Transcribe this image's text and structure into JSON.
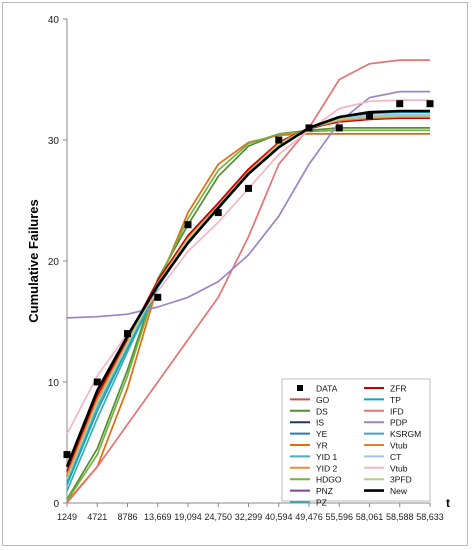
{
  "chart_data": {
    "type": "line",
    "title": "",
    "ylabel": "Cumulative Failures",
    "xlabel": "t",
    "x": [
      "1249",
      "4721",
      "8786",
      "13,669",
      "19,094",
      "24,750",
      "32,299",
      "40,594",
      "49,476",
      "55,596",
      "58,061",
      "58,588",
      "58,633"
    ],
    "ylim": [
      0,
      40
    ],
    "yticks": [
      0,
      10,
      20,
      30,
      40
    ],
    "grid": false,
    "legend_position": "bottom-right",
    "data": {
      "name": "DATA",
      "values": [
        4,
        10,
        14,
        17,
        23,
        24,
        26,
        30,
        31,
        31,
        32,
        33,
        33
      ]
    },
    "series": [
      {
        "name": "GO",
        "color": "#c0504d",
        "values": [
          2.5,
          8.8,
          13.5,
          18.3,
          22.0,
          24.7,
          27.5,
          29.8,
          31.0,
          31.6,
          31.8,
          31.9,
          31.9
        ]
      },
      {
        "name": "DS",
        "color": "#4f8f2f",
        "values": [
          0.3,
          4.5,
          11.0,
          18.5,
          23.0,
          27.0,
          29.5,
          30.5,
          30.8,
          31.0,
          31.0,
          31.0,
          31.0
        ]
      },
      {
        "name": "IS",
        "color": "#1f3864",
        "values": [
          2.2,
          8.5,
          13.3,
          18.2,
          21.8,
          24.6,
          27.3,
          29.6,
          30.9,
          31.6,
          31.8,
          31.9,
          31.9
        ]
      },
      {
        "name": "YE",
        "color": "#2e75b6",
        "values": [
          1.8,
          8.0,
          13.0,
          18.0,
          21.7,
          24.4,
          27.2,
          29.5,
          31.0,
          31.8,
          32.0,
          32.1,
          32.1
        ]
      },
      {
        "name": "YR",
        "color": "#e26b0a",
        "values": [
          0.1,
          3.0,
          9.5,
          18.0,
          24.0,
          28.0,
          29.8,
          30.4,
          30.5,
          30.5,
          30.5,
          30.5,
          30.5
        ]
      },
      {
        "name": "YID 1",
        "color": "#4bacc6",
        "values": [
          2.0,
          8.3,
          13.2,
          18.1,
          21.8,
          24.5,
          27.3,
          29.6,
          31.0,
          31.7,
          31.9,
          32.0,
          32.0
        ]
      },
      {
        "name": "YID 2",
        "color": "#f28b30",
        "values": [
          2.4,
          8.7,
          13.4,
          18.2,
          21.9,
          24.6,
          27.4,
          29.7,
          31.0,
          31.6,
          31.8,
          31.9,
          31.9
        ]
      },
      {
        "name": "HDGO",
        "color": "#76b041",
        "values": [
          0.2,
          4.0,
          10.5,
          18.3,
          23.5,
          27.5,
          29.7,
          30.5,
          30.7,
          30.8,
          30.8,
          30.8,
          30.8
        ]
      },
      {
        "name": "PNZ",
        "color": "#7f3f98",
        "values": [
          2.2,
          8.5,
          13.3,
          18.2,
          21.9,
          24.6,
          27.4,
          29.7,
          31.0,
          31.6,
          31.8,
          31.9,
          31.9
        ]
      },
      {
        "name": "PZ",
        "color": "#31b0b0",
        "values": [
          1.0,
          7.0,
          12.5,
          17.8,
          21.6,
          24.3,
          27.2,
          29.6,
          31.0,
          31.9,
          32.2,
          32.3,
          32.3
        ]
      },
      {
        "name": "ZFR",
        "color": "#c00000",
        "values": [
          2.6,
          8.9,
          13.6,
          18.4,
          22.1,
          24.8,
          27.6,
          29.8,
          31.0,
          31.5,
          31.7,
          31.8,
          31.8
        ]
      },
      {
        "name": "TP",
        "color": "#17a2b8",
        "values": [
          1.5,
          7.6,
          12.8,
          17.9,
          21.7,
          24.4,
          27.2,
          29.5,
          31.0,
          31.9,
          32.2,
          32.3,
          32.3
        ]
      },
      {
        "name": "IFD",
        "color": "#e57373",
        "values": [
          0.0,
          3.0,
          6.5,
          10.0,
          13.5,
          17.0,
          22.0,
          28.0,
          31.0,
          35.0,
          36.3,
          36.6,
          36.6
        ]
      },
      {
        "name": "PDP",
        "color": "#9b84c6",
        "values": [
          15.3,
          15.4,
          15.6,
          16.2,
          17.0,
          18.3,
          20.5,
          23.7,
          28.0,
          31.5,
          33.5,
          34.0,
          34.0
        ]
      },
      {
        "name": "KSRGM",
        "color": "#41a1c8",
        "values": [
          1.8,
          8.0,
          13.0,
          18.0,
          21.7,
          24.4,
          27.2,
          29.5,
          31.0,
          31.8,
          32.0,
          32.1,
          32.1
        ]
      },
      {
        "name": "Vtub",
        "color": "#ed7d31",
        "values": [
          2.3,
          8.6,
          13.3,
          18.2,
          21.9,
          24.6,
          27.4,
          29.7,
          31.0,
          31.6,
          31.8,
          31.9,
          31.9
        ]
      },
      {
        "name": "CT",
        "color": "#9dc3e6",
        "values": [
          2.0,
          8.2,
          13.1,
          18.0,
          21.8,
          24.5,
          27.3,
          29.6,
          31.0,
          31.8,
          32.0,
          32.1,
          32.1
        ]
      },
      {
        "name": "Vtub",
        "color": "#f4b6c2",
        "values": [
          5.7,
          10.5,
          14.0,
          17.5,
          20.8,
          23.2,
          26.0,
          28.8,
          30.8,
          32.6,
          33.2,
          33.3,
          33.3
        ]
      },
      {
        "name": "3PFD",
        "color": "#a9d18e",
        "values": [
          2.0,
          8.3,
          13.2,
          18.1,
          21.8,
          24.5,
          27.3,
          29.6,
          31.0,
          31.7,
          31.9,
          32.0,
          32.0
        ]
      },
      {
        "name": "New",
        "color": "#000000",
        "values": [
          3.0,
          9.3,
          13.8,
          18.0,
          21.5,
          24.4,
          27.2,
          29.4,
          31.0,
          31.9,
          32.3,
          32.4,
          32.4
        ]
      }
    ]
  }
}
